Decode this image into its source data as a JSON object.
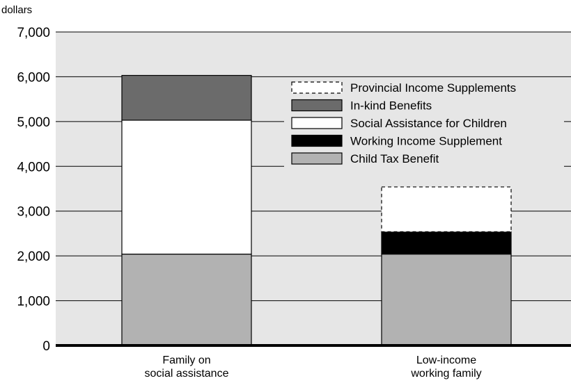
{
  "chart_data": {
    "type": "bar",
    "stacked": true,
    "y_unit_label": "dollars",
    "ylim": [
      0,
      7000
    ],
    "y_ticks": [
      0,
      1000,
      2000,
      3000,
      4000,
      5000,
      6000,
      7000
    ],
    "y_tick_labels": [
      "0",
      "1,000",
      "2,000",
      "3,000",
      "4,000",
      "5,000",
      "6,000",
      "7,000"
    ],
    "categories": [
      {
        "lines": [
          "Family on",
          "social assistance"
        ]
      },
      {
        "lines": [
          "Low-income",
          "working family"
        ]
      }
    ],
    "series": [
      {
        "name": "Child Tax Benefit",
        "color": "#b2b2b2",
        "dashed": false,
        "values": [
          2040,
          2040
        ]
      },
      {
        "name": "Working Income Supplement",
        "color": "#000000",
        "dashed": false,
        "values": [
          0,
          500
        ]
      },
      {
        "name": "Social Assistance for Children",
        "color": "#ffffff",
        "dashed": false,
        "values": [
          2990,
          0
        ]
      },
      {
        "name": "In-kind Benefits",
        "color": "#6b6b6b",
        "dashed": false,
        "values": [
          1000,
          0
        ]
      },
      {
        "name": "Provincial Income Supplements",
        "color": "#ffffff",
        "dashed": true,
        "values": [
          0,
          1000
        ]
      }
    ],
    "legend_order": [
      "Provincial Income Supplements",
      "In-kind Benefits",
      "Social Assistance for Children",
      "Working Income Supplement",
      "Child Tax Benefit"
    ],
    "grid": true,
    "plot_background": "#e6e6e6",
    "legend_position": "top-right"
  }
}
